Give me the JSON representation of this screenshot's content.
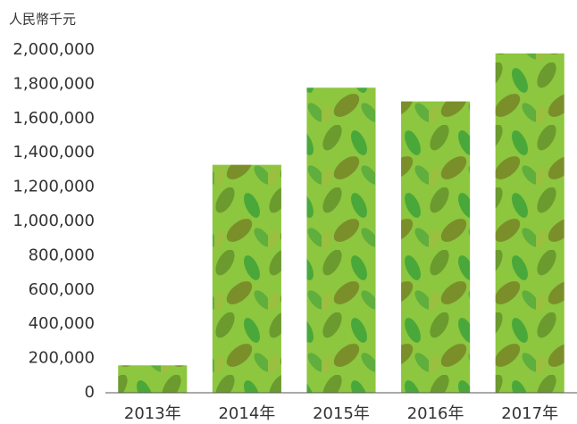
{
  "chart_data": {
    "type": "bar",
    "y_label": "人民幣千元",
    "categories": [
      "2013年",
      "2014年",
      "2015年",
      "2016年",
      "2017年"
    ],
    "values": [
      160000,
      1330000,
      1780000,
      1700000,
      1980000
    ],
    "color": "#8dc63f",
    "ylim": [
      0,
      2000000
    ],
    "yticks": [
      0,
      {
        "value": 200000,
        "label": "200,000"
      },
      {
        "value": 400000,
        "label": "400,000"
      },
      {
        "value": 600000,
        "label": "600,000"
      },
      {
        "value": 800000,
        "label": "800,000"
      },
      {
        "value": 1000000,
        "label": "1,000,000"
      },
      {
        "value": 1200000,
        "label": "1,200,000"
      },
      {
        "value": 1400000,
        "label": "1,400,000"
      },
      {
        "value": 1600000,
        "label": "1,600,000"
      },
      {
        "value": 1800000,
        "label": "1,800,000"
      },
      {
        "value": 2000000,
        "label": "2,000,000"
      }
    ],
    "grid": false
  }
}
